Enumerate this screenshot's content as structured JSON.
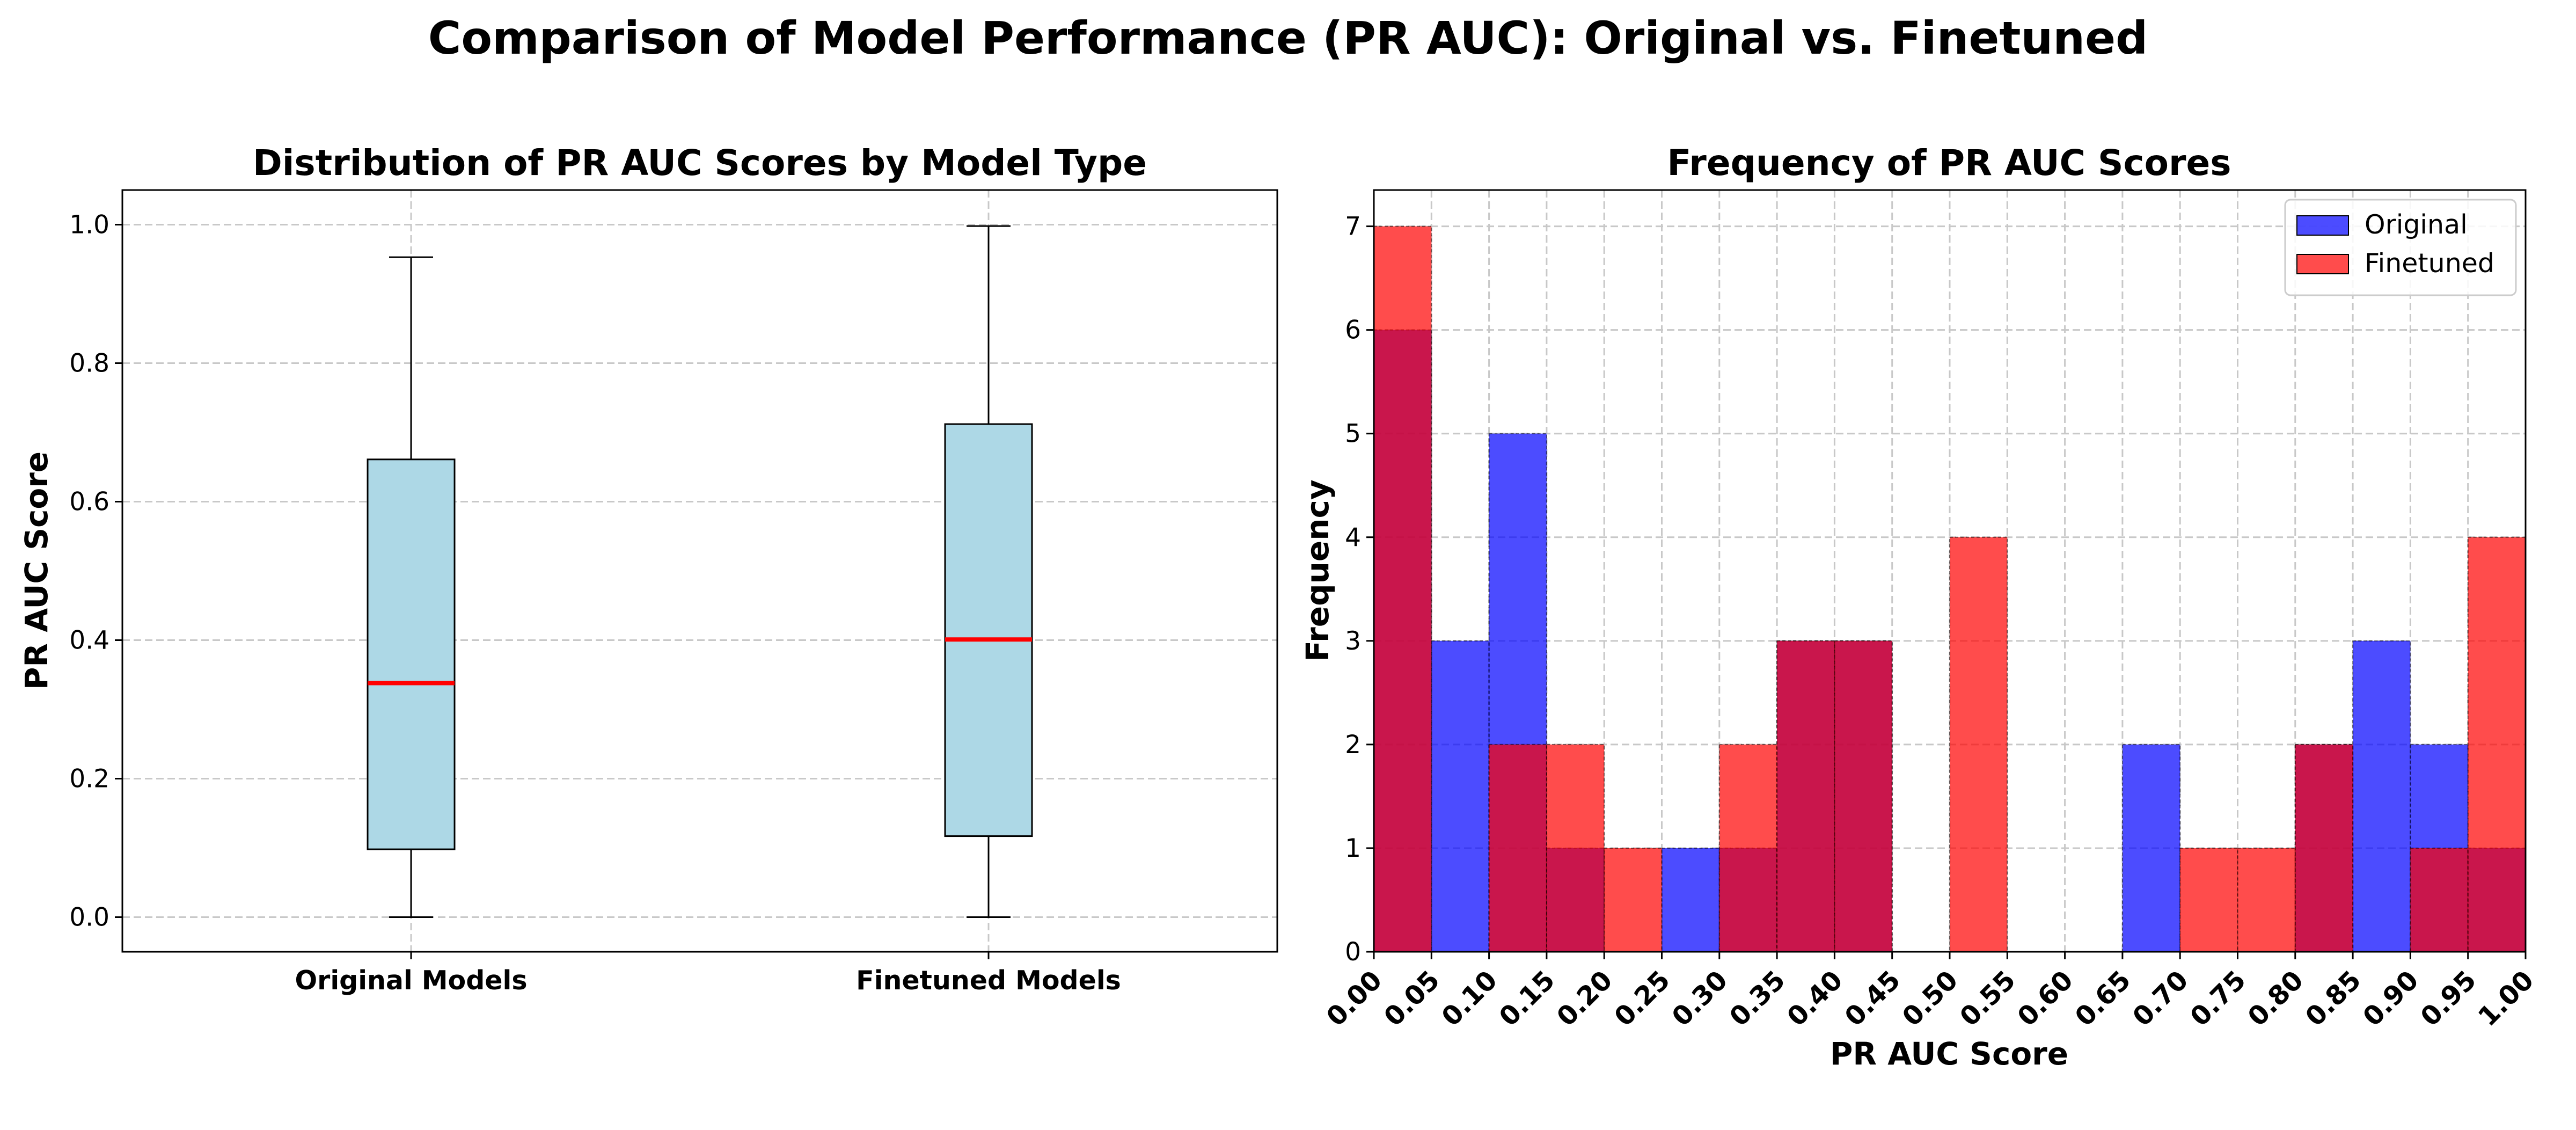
{
  "suptitle": "Comparison of Model Performance (PR AUC): Original vs. Finetuned",
  "chart_data": [
    {
      "type": "box",
      "title": "Distribution of PR AUC Scores by Model Type",
      "xlabel": "",
      "ylabel": "PR AUC Score",
      "ylim": [
        -0.05,
        1.05
      ],
      "yticks": [
        "0.0",
        "0.2",
        "0.4",
        "0.6",
        "0.8",
        "1.0"
      ],
      "grid": true,
      "box_color": "#add8e6",
      "median_color": "#ff0000",
      "categories": [
        "Original Models",
        "Finetuned Models"
      ],
      "boxes": [
        {
          "name": "Original Models",
          "whisker_low": 0.0,
          "q1": 0.098,
          "median": 0.338,
          "q3": 0.661,
          "whisker_high": 0.953
        },
        {
          "name": "Finetuned Models",
          "whisker_low": 0.0,
          "q1": 0.117,
          "median": 0.401,
          "q3": 0.712,
          "whisker_high": 0.998
        }
      ]
    },
    {
      "type": "histogram",
      "title": "Frequency of PR AUC Scores",
      "xlabel": "PR AUC Score",
      "ylabel": "Frequency",
      "xlim": [
        0,
        1
      ],
      "ylim": [
        0,
        7.35
      ],
      "yticks": [
        "0",
        "1",
        "2",
        "3",
        "4",
        "5",
        "6",
        "7"
      ],
      "bin_edges": [
        0.0,
        0.05,
        0.1,
        0.15,
        0.2,
        0.25,
        0.3,
        0.35,
        0.4,
        0.45,
        0.5,
        0.55,
        0.6,
        0.65,
        0.7,
        0.75,
        0.8,
        0.85,
        0.9,
        0.95,
        1.0
      ],
      "xtick_labels": [
        "0.00",
        "0.05",
        "0.10",
        "0.15",
        "0.20",
        "0.25",
        "0.30",
        "0.35",
        "0.40",
        "0.45",
        "0.50",
        "0.55",
        "0.60",
        "0.65",
        "0.70",
        "0.75",
        "0.80",
        "0.85",
        "0.90",
        "0.95",
        "1.00"
      ],
      "grid": true,
      "legend_position": "top-right",
      "series": [
        {
          "name": "Original",
          "color": "#0000ff",
          "values": [
            6,
            3,
            5,
            1,
            0,
            1,
            1,
            3,
            3,
            0,
            0,
            0,
            0,
            2,
            0,
            0,
            2,
            3,
            2,
            1
          ]
        },
        {
          "name": "Finetuned",
          "color": "#ff0000",
          "values": [
            7,
            0,
            2,
            2,
            1,
            0,
            2,
            3,
            3,
            0,
            4,
            0,
            0,
            0,
            1,
            1,
            2,
            0,
            1,
            4
          ]
        }
      ]
    }
  ]
}
